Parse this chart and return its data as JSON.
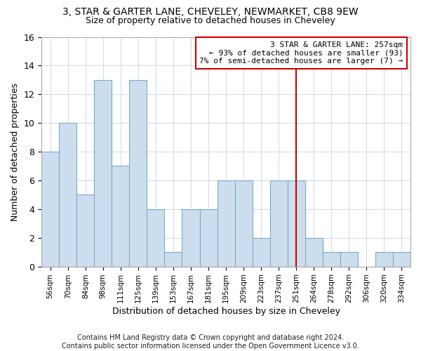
{
  "title1": "3, STAR & GARTER LANE, CHEVELEY, NEWMARKET, CB8 9EW",
  "title2": "Size of property relative to detached houses in Cheveley",
  "xlabel": "Distribution of detached houses by size in Cheveley",
  "ylabel": "Number of detached properties",
  "bins": [
    "56sqm",
    "70sqm",
    "84sqm",
    "98sqm",
    "111sqm",
    "125sqm",
    "139sqm",
    "153sqm",
    "167sqm",
    "181sqm",
    "195sqm",
    "209sqm",
    "223sqm",
    "237sqm",
    "251sqm",
    "264sqm",
    "278sqm",
    "292sqm",
    "306sqm",
    "320sqm",
    "334sqm"
  ],
  "values": [
    8,
    10,
    5,
    13,
    7,
    13,
    4,
    1,
    4,
    4,
    6,
    6,
    2,
    6,
    6,
    2,
    1,
    1,
    0,
    1,
    1
  ],
  "bar_color": "#ccdded",
  "bar_edge_color": "#7aaacb",
  "vline_bin_index": 14,
  "vline_color": "#cc0000",
  "annotation_line1": "3 STAR & GARTER LANE: 257sqm",
  "annotation_line2": "← 93% of detached houses are smaller (93)",
  "annotation_line3": "7% of semi-detached houses are larger (7) →",
  "annotation_box_edgecolor": "#cc0000",
  "ylim": [
    0,
    16
  ],
  "yticks": [
    0,
    2,
    4,
    6,
    8,
    10,
    12,
    14,
    16
  ],
  "footer": "Contains HM Land Registry data © Crown copyright and database right 2024.\nContains public sector information licensed under the Open Government Licence v3.0.",
  "bg_color": "#ffffff",
  "grid_color": "#d0d8e8"
}
